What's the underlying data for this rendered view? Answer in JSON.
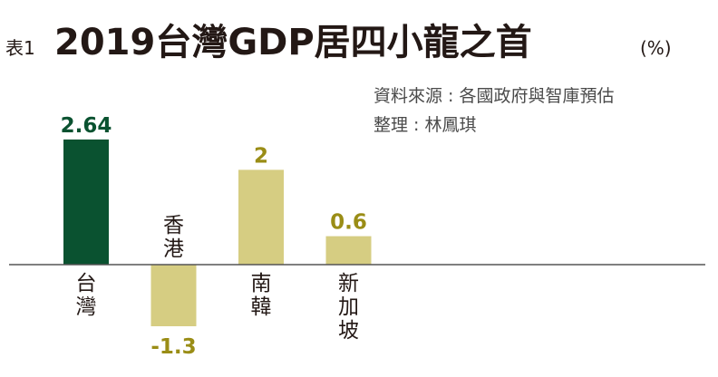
{
  "table_label": "表1",
  "title": "2019台灣GDP居四小龍之首",
  "unit": "(%)",
  "source_lines": [
    "資料來源 : 各國政府與智庫預估",
    "整理 : 林鳳琪"
  ],
  "colors": {
    "highlight": "#0a5230",
    "bar": "#d6cd82",
    "label_highlight": "#0a5230",
    "label_other": "#9a8d16",
    "axis": "#555555",
    "text": "#231815",
    "source_text": "#4a4a4a"
  },
  "chart_data": {
    "type": "bar",
    "title": "2019台灣GDP居四小龍之首",
    "unit": "%",
    "categories": [
      "台灣",
      "香港",
      "南韓",
      "新加坡"
    ],
    "values": [
      2.64,
      -1.3,
      2,
      0.6
    ],
    "value_labels": [
      "2.64",
      "-1.3",
      "2",
      "0.6"
    ],
    "highlight_index": 0,
    "grid": false,
    "legend": "none"
  }
}
